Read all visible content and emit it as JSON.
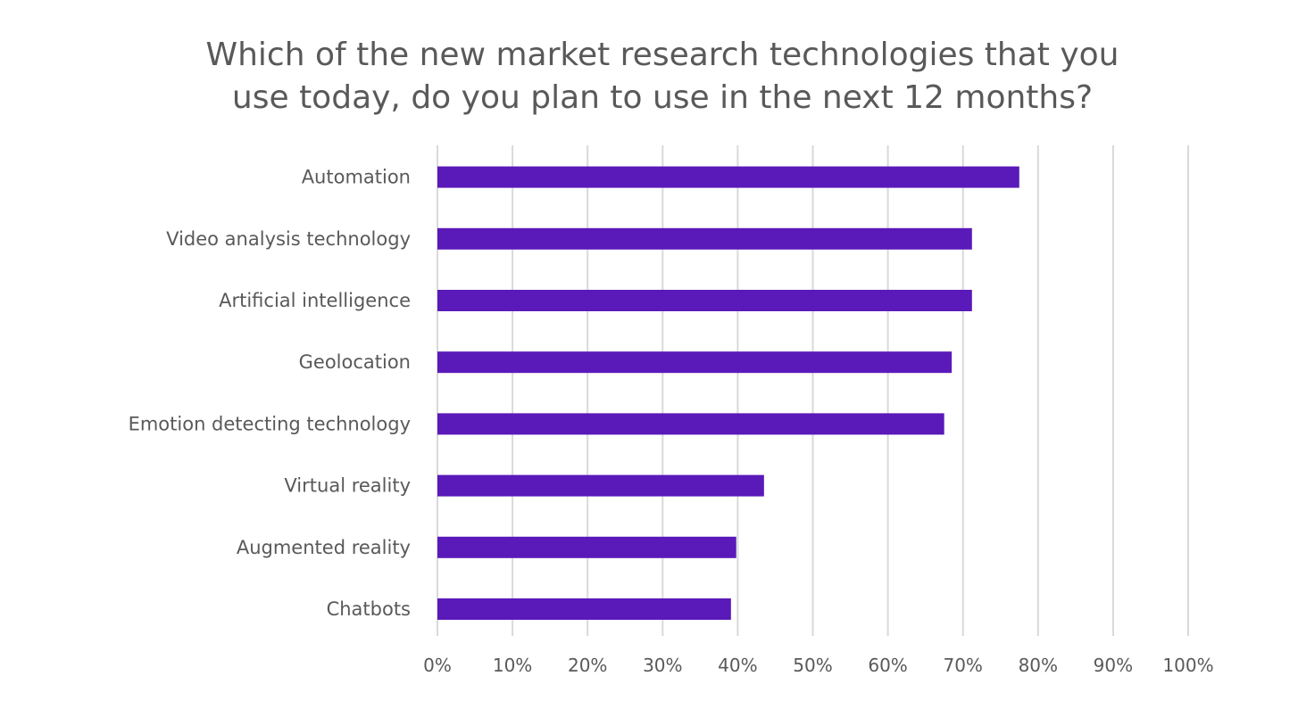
{
  "chart_data": {
    "type": "bar",
    "orientation": "horizontal",
    "title_lines": [
      "Which of the new market research technologies that you",
      "use today, do you plan to use in the next 12 months?"
    ],
    "categories": [
      "Automation",
      "Video analysis technology",
      "Artificial intelligence",
      "Geolocation",
      "Emotion detecting technology",
      "Virtual reality",
      "Augmented reality",
      "Chatbots"
    ],
    "values": [
      77.5,
      71.2,
      71.2,
      68.5,
      67.5,
      43.5,
      39.8,
      39.1
    ],
    "xlim": [
      0,
      100
    ],
    "x_ticks": [
      "0%",
      "10%",
      "20%",
      "30%",
      "40%",
      "50%",
      "60%",
      "70%",
      "80%",
      "90%",
      "100%"
    ],
    "grid": "vertical",
    "legend": "none",
    "colors": {
      "bar": "#5a19b9",
      "grid": "#d9d9d9",
      "text": "#595959"
    }
  }
}
